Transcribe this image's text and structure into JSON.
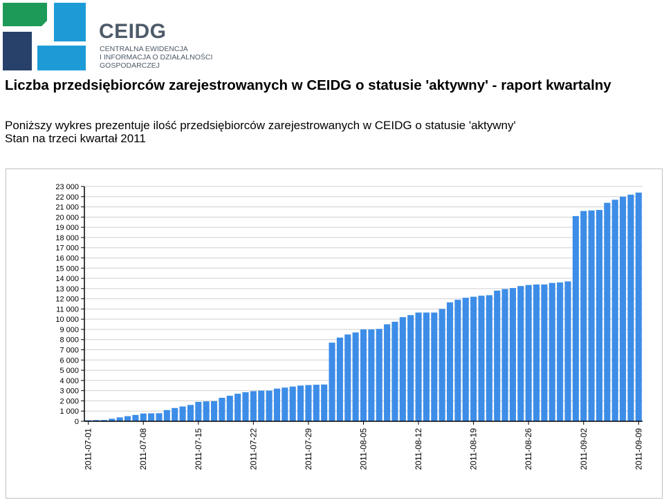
{
  "brand": {
    "name": "CEIDG",
    "subtitle_lines": [
      "CENTRALNA EWIDENCJA",
      "I INFORMACJA O DZIAŁALNOŚCI",
      "GOSPODARCZEJ"
    ],
    "logo_colors": {
      "green": "#1e9a58",
      "blue": "#1d9bd7",
      "navy": "#28416b"
    }
  },
  "page": {
    "title": "Liczba przedsiębiorców zarejestrowanych w CEIDG o statusie 'aktywny' - raport kwartalny",
    "description_line1": "Poniższy wykres prezentuje ilość przedsiębiorców zarejestrowanych w CEIDG o statusie 'aktywny'",
    "description_line2": "Stan na trzeci kwartał 2011"
  },
  "chart_data": {
    "type": "bar",
    "bar_color": "#3d8de8",
    "grid": true,
    "ylim": [
      0,
      23000
    ],
    "y_ticks": [
      "0",
      "1 000",
      "2 000",
      "3 000",
      "4 000",
      "5 000",
      "6 000",
      "7 000",
      "8 000",
      "9 000",
      "10 000",
      "11 000",
      "12 000",
      "13 000",
      "14 000",
      "15 000",
      "16 000",
      "17 000",
      "18 000",
      "19 000",
      "20 000",
      "21 000",
      "22 000",
      "23 000"
    ],
    "x_ticks": [
      "2011-07-01",
      "2011-07-08",
      "2011-07-15",
      "2011-07-22",
      "2011-07-29",
      "2011-08-05",
      "2011-08-12",
      "2011-08-19",
      "2011-08-26",
      "2011-09-02",
      "2011-09-09"
    ],
    "categories": [
      "2011-07-01",
      "2011-07-02",
      "2011-07-03",
      "2011-07-04",
      "2011-07-05",
      "2011-07-06",
      "2011-07-07",
      "2011-07-08",
      "2011-07-09",
      "2011-07-10",
      "2011-07-11",
      "2011-07-12",
      "2011-07-13",
      "2011-07-14",
      "2011-07-15",
      "2011-07-16",
      "2011-07-17",
      "2011-07-18",
      "2011-07-19",
      "2011-07-20",
      "2011-07-21",
      "2011-07-22",
      "2011-07-23",
      "2011-07-24",
      "2011-07-25",
      "2011-07-26",
      "2011-07-27",
      "2011-07-28",
      "2011-07-29",
      "2011-07-30",
      "2011-07-31",
      "2011-08-01",
      "2011-08-02",
      "2011-08-03",
      "2011-08-04",
      "2011-08-05",
      "2011-08-06",
      "2011-08-07",
      "2011-08-08",
      "2011-08-09",
      "2011-08-10",
      "2011-08-11",
      "2011-08-12",
      "2011-08-13",
      "2011-08-14",
      "2011-08-15",
      "2011-08-16",
      "2011-08-17",
      "2011-08-18",
      "2011-08-19",
      "2011-08-20",
      "2011-08-21",
      "2011-08-22",
      "2011-08-23",
      "2011-08-24",
      "2011-08-25",
      "2011-08-26",
      "2011-08-27",
      "2011-08-28",
      "2011-08-29",
      "2011-08-30",
      "2011-08-31",
      "2011-09-01",
      "2011-09-02",
      "2011-09-03",
      "2011-09-04",
      "2011-09-05",
      "2011-09-06",
      "2011-09-07",
      "2011-09-08",
      "2011-09-09"
    ],
    "values": [
      100,
      120,
      130,
      250,
      380,
      500,
      620,
      760,
      780,
      790,
      1100,
      1300,
      1450,
      1600,
      1900,
      1950,
      1970,
      2300,
      2500,
      2700,
      2850,
      2950,
      3000,
      3000,
      3200,
      3300,
      3400,
      3500,
      3550,
      3580,
      3600,
      7700,
      8200,
      8500,
      8700,
      9000,
      9000,
      9050,
      9500,
      9750,
      10200,
      10400,
      10650,
      10650,
      10650,
      11000,
      11650,
      11900,
      12100,
      12200,
      12300,
      12350,
      12800,
      12950,
      13050,
      13250,
      13350,
      13400,
      13400,
      13550,
      13600,
      13700,
      20100,
      20600,
      20650,
      20700,
      21400,
      21700,
      22000,
      22200,
      22400
    ]
  }
}
